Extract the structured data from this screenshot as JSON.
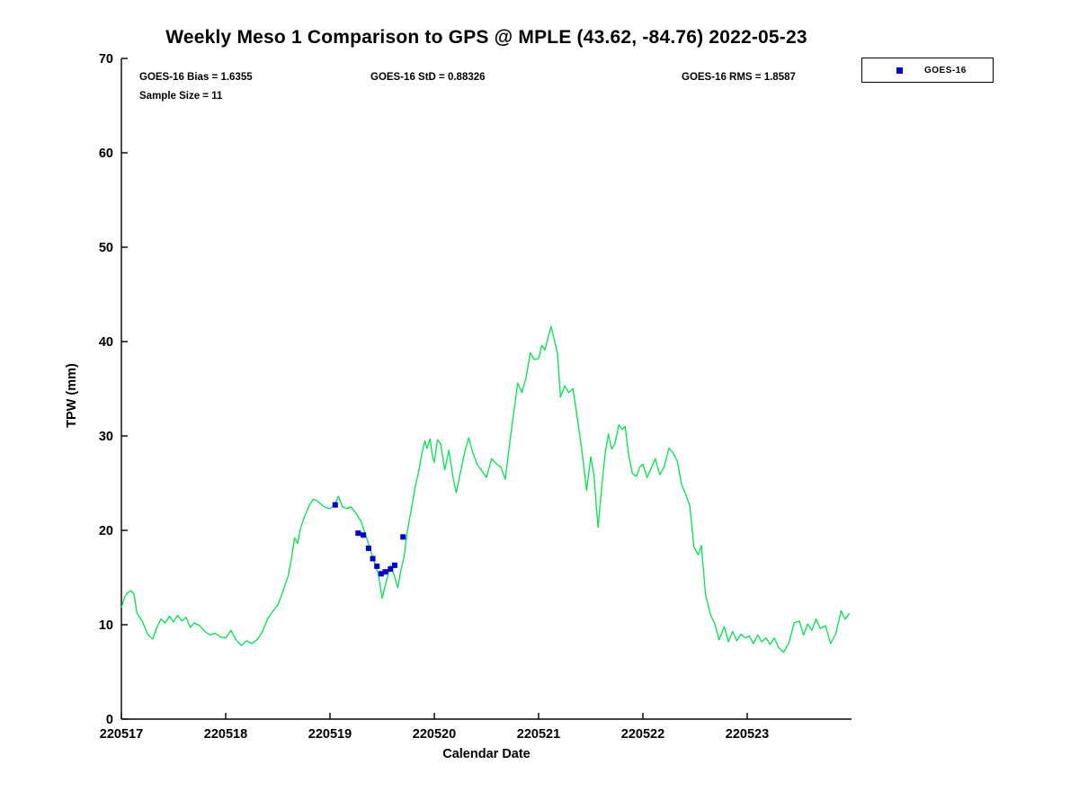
{
  "title": "Weekly Meso 1 Comparison to GPS @ MPLE (43.62, -84.76) 2022-05-23",
  "stats": {
    "bias": "GOES-16 Bias = 1.6355",
    "std": "GOES-16 StD = 0.88326",
    "rms": "GOES-16 RMS = 1.8587",
    "sample_size": "Sample Size = 11"
  },
  "legend": {
    "items": [
      {
        "label": "GOES-16",
        "color": "#0000cd",
        "marker": "square"
      }
    ]
  },
  "colors": {
    "gps_line": "#00e550",
    "goes16_marker": "#0000cd",
    "axis": "#000000"
  },
  "chart_data": {
    "type": "line",
    "title": "Weekly Meso 1 Comparison to GPS @ MPLE (43.62, -84.76) 2022-05-23",
    "xlabel": "Calendar Date",
    "ylabel": "TPW (mm)",
    "xlim": [
      220517,
      220524
    ],
    "ylim": [
      0,
      70
    ],
    "xticks": [
      220517,
      220518,
      220519,
      220520,
      220521,
      220522,
      220523
    ],
    "yticks": [
      0,
      10,
      20,
      30,
      40,
      50,
      60,
      70
    ],
    "grid": false,
    "legend_position": "outside-top-right",
    "series": [
      {
        "name": "GPS",
        "type": "line",
        "color": "#00e550",
        "x": [
          220517.0,
          220517.03,
          220517.06,
          220517.09,
          220517.12,
          220517.15,
          220517.2,
          220517.25,
          220517.3,
          220517.34,
          220517.38,
          220517.42,
          220517.46,
          220517.5,
          220517.54,
          220517.58,
          220517.62,
          220517.66,
          220517.7,
          220517.75,
          220517.8,
          220517.85,
          220517.9,
          220517.95,
          220518.0,
          220518.05,
          220518.1,
          220518.15,
          220518.2,
          220518.25,
          220518.3,
          220518.35,
          220518.4,
          220518.45,
          220518.5,
          220518.55,
          220518.6,
          220518.63,
          220518.66,
          220518.69,
          220518.72,
          220518.76,
          220518.8,
          220518.84,
          220518.88,
          220518.92,
          220518.96,
          220519.0,
          220519.04,
          220519.08,
          220519.12,
          220519.16,
          220519.2,
          220519.25,
          220519.3,
          220519.34,
          220519.38,
          220519.42,
          220519.46,
          220519.5,
          220519.54,
          220519.58,
          220519.62,
          220519.65,
          220519.68,
          220519.71,
          220519.74,
          220519.78,
          220519.82,
          220519.85,
          220519.88,
          220519.91,
          220519.93,
          220519.96,
          220519.98,
          220520.0,
          220520.03,
          220520.06,
          220520.1,
          220520.14,
          220520.18,
          220520.21,
          220520.25,
          220520.29,
          220520.33,
          220520.37,
          220520.41,
          220520.45,
          220520.5,
          220520.55,
          220520.6,
          220520.64,
          220520.68,
          220520.72,
          220520.76,
          220520.8,
          220520.84,
          220520.88,
          220520.92,
          220520.96,
          220521.0,
          220521.03,
          220521.06,
          220521.09,
          220521.12,
          220521.15,
          220521.18,
          220521.21,
          220521.25,
          220521.29,
          220521.33,
          220521.38,
          220521.42,
          220521.46,
          220521.5,
          220521.53,
          220521.57,
          220521.61,
          220521.64,
          220521.67,
          220521.7,
          220521.73,
          220521.77,
          220521.8,
          220521.83,
          220521.86,
          220521.9,
          220521.94,
          220521.97,
          220522.0,
          220522.04,
          220522.08,
          220522.12,
          220522.16,
          220522.2,
          220522.25,
          220522.29,
          220522.33,
          220522.37,
          220522.41,
          220522.45,
          220522.49,
          220522.53,
          220522.56,
          220522.6,
          220522.65,
          220522.69,
          220522.73,
          220522.78,
          220522.82,
          220522.86,
          220522.9,
          220522.94,
          220522.98,
          220523.02,
          220523.06,
          220523.1,
          220523.14,
          220523.18,
          220523.22,
          220523.26,
          220523.3,
          220523.35,
          220523.4,
          220523.45,
          220523.5,
          220523.54,
          220523.58,
          220523.62,
          220523.66,
          220523.7,
          220523.75,
          220523.8,
          220523.85,
          220523.9,
          220523.94,
          220523.98
        ],
        "y": [
          11.8,
          12.9,
          13.4,
          13.6,
          13.3,
          11.2,
          10.4,
          9.0,
          8.5,
          9.7,
          10.6,
          10.2,
          10.9,
          10.3,
          11.0,
          10.4,
          10.8,
          9.7,
          10.2,
          9.9,
          9.3,
          8.9,
          9.1,
          8.7,
          8.6,
          9.4,
          8.4,
          7.8,
          8.3,
          8.0,
          8.4,
          9.2,
          10.6,
          11.4,
          12.1,
          13.6,
          15.2,
          17.0,
          19.2,
          18.6,
          20.3,
          21.6,
          22.6,
          23.3,
          23.1,
          22.7,
          22.4,
          22.3,
          22.6,
          23.6,
          22.5,
          22.3,
          22.5,
          21.8,
          20.9,
          19.6,
          18.2,
          16.8,
          15.5,
          12.8,
          14.6,
          16.3,
          15.1,
          13.9,
          15.8,
          17.2,
          19.8,
          22.3,
          24.8,
          26.2,
          28.1,
          29.5,
          28.7,
          29.7,
          28.0,
          27.2,
          29.6,
          29.2,
          26.4,
          28.5,
          25.6,
          24.0,
          26.1,
          28.2,
          29.8,
          28.2,
          27.0,
          26.4,
          25.6,
          27.6,
          27.0,
          26.7,
          25.4,
          29.0,
          32.4,
          35.6,
          34.6,
          36.2,
          38.8,
          38.1,
          38.2,
          39.6,
          39.1,
          40.4,
          41.6,
          40.2,
          38.8,
          34.1,
          35.3,
          34.6,
          35.0,
          31.2,
          28.0,
          24.2,
          27.8,
          25.9,
          20.3,
          25.2,
          28.3,
          30.2,
          28.6,
          29.1,
          31.2,
          30.7,
          31.0,
          28.2,
          26.0,
          25.7,
          26.7,
          27.0,
          25.6,
          26.6,
          27.6,
          25.9,
          26.6,
          28.7,
          28.2,
          27.3,
          24.9,
          23.8,
          22.6,
          18.2,
          17.4,
          18.4,
          13.2,
          11.0,
          10.1,
          8.4,
          9.8,
          8.2,
          9.3,
          8.3,
          9.0,
          8.6,
          8.8,
          8.0,
          8.9,
          8.2,
          8.6,
          7.9,
          8.6,
          7.6,
          7.1,
          8.1,
          10.2,
          10.4,
          8.9,
          10.1,
          9.4,
          10.6,
          9.6,
          9.9,
          8.0,
          9.1,
          11.5,
          10.6,
          11.2
        ]
      },
      {
        "name": "GOES-16",
        "type": "scatter",
        "marker": "square",
        "color": "#0000cd",
        "x": [
          220519.05,
          220519.27,
          220519.32,
          220519.37,
          220519.41,
          220519.45,
          220519.49,
          220519.53,
          220519.58,
          220519.62,
          220519.7
        ],
        "y": [
          22.7,
          19.7,
          19.5,
          18.1,
          17.0,
          16.2,
          15.4,
          15.6,
          15.9,
          16.3,
          19.3
        ]
      }
    ]
  }
}
